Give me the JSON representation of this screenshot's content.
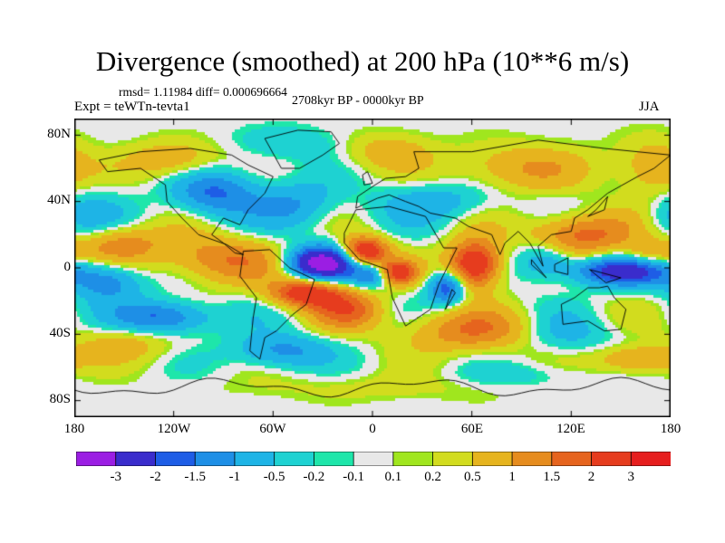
{
  "header": {
    "title": "Divergence (smoothed) at 200 hPa (10**6 m/s)",
    "stats": "rmsd= 1.11984 diff= 0.000696664",
    "expt": "Expt = teWTn-tevta1",
    "period": "2708kyr BP - 0000kyr BP",
    "season": "JJA"
  },
  "axes": {
    "y_labels": [
      "80N",
      "40N",
      "0",
      "40S",
      "80S"
    ],
    "x_labels": [
      "180",
      "120W",
      "60W",
      "0",
      "60E",
      "120E",
      "180"
    ]
  },
  "legend": {
    "labels": [
      "-3",
      "-2",
      "-1.5",
      "-1",
      "-0.5",
      "-0.2",
      "-0.1",
      "0.1",
      "0.2",
      "0.5",
      "1",
      "1.5",
      "2",
      "3"
    ],
    "colors": [
      "#9b1ee3",
      "#3a2ccc",
      "#1e5de6",
      "#1e8fe6",
      "#1eb4e6",
      "#1ed2d2",
      "#1ee6aa",
      "#e8e8e8",
      "#a0e61e",
      "#d2dc1e",
      "#e6b41e",
      "#e68c1e",
      "#e6641e",
      "#e63c1e",
      "#e61e1e"
    ]
  },
  "map_data": {
    "lon_range": [
      -180,
      180
    ],
    "lat_range": [
      -90,
      90
    ],
    "features": [
      {
        "lon": -30,
        "lat": 3,
        "v": -3.5,
        "sx": 14,
        "sy": 7
      },
      {
        "lon": -5,
        "lat": 10,
        "v": 3.0,
        "sx": 10,
        "sy": 6
      },
      {
        "lon": 62,
        "lat": 2,
        "v": 3.2,
        "sx": 11,
        "sy": 10
      },
      {
        "lon": 45,
        "lat": -12,
        "v": -2.0,
        "sx": 8,
        "sy": 7
      },
      {
        "lon": 15,
        "lat": -3,
        "v": 2.3,
        "sx": 8,
        "sy": 5
      },
      {
        "lon": 0,
        "lat": -5,
        "v": -1.5,
        "sx": 8,
        "sy": 5
      },
      {
        "lon": -40,
        "lat": -15,
        "v": 2.6,
        "sx": 15,
        "sy": 6
      },
      {
        "lon": -15,
        "lat": -25,
        "v": 1.6,
        "sx": 15,
        "sy": 8
      },
      {
        "lon": 150,
        "lat": -2,
        "v": -2.3,
        "sx": 22,
        "sy": 6
      },
      {
        "lon": 105,
        "lat": 5,
        "v": -1.2,
        "sx": 12,
        "sy": 8
      },
      {
        "lon": 125,
        "lat": 20,
        "v": 1.8,
        "sx": 22,
        "sy": 9
      },
      {
        "lon": 168,
        "lat": 8,
        "v": 1.0,
        "sx": 12,
        "sy": 6
      },
      {
        "lon": -160,
        "lat": -8,
        "v": -1.5,
        "sx": 15,
        "sy": 8
      },
      {
        "lon": -95,
        "lat": 5,
        "v": 1.5,
        "sx": 25,
        "sy": 10
      },
      {
        "lon": -155,
        "lat": 15,
        "v": 1.3,
        "sx": 20,
        "sy": 8
      },
      {
        "lon": -125,
        "lat": -30,
        "v": -1.8,
        "sx": 20,
        "sy": 7
      },
      {
        "lon": -175,
        "lat": 30,
        "v": -0.8,
        "sx": 15,
        "sy": 12
      },
      {
        "lon": -95,
        "lat": 45,
        "v": -1.6,
        "sx": 18,
        "sy": 10
      },
      {
        "lon": -45,
        "lat": 38,
        "v": -1.0,
        "sx": 18,
        "sy": 10
      },
      {
        "lon": -55,
        "lat": -50,
        "v": -1.2,
        "sx": 20,
        "sy": 7
      },
      {
        "lon": 40,
        "lat": 40,
        "v": -0.8,
        "sx": 25,
        "sy": 8
      },
      {
        "lon": 60,
        "lat": -38,
        "v": 1.4,
        "sx": 30,
        "sy": 9
      },
      {
        "lon": 115,
        "lat": -40,
        "v": -0.7,
        "sx": 22,
        "sy": 8
      },
      {
        "lon": 160,
        "lat": -55,
        "v": 1.2,
        "sx": 18,
        "sy": 6
      },
      {
        "lon": -150,
        "lat": -45,
        "v": 0.8,
        "sx": 20,
        "sy": 8
      },
      {
        "lon": 90,
        "lat": 60,
        "v": 1.0,
        "sx": 30,
        "sy": 10
      },
      {
        "lon": -120,
        "lat": 65,
        "v": 1.0,
        "sx": 20,
        "sy": 8
      },
      {
        "lon": 10,
        "lat": 70,
        "v": 0.8,
        "sx": 18,
        "sy": 8
      },
      {
        "lon": -50,
        "lat": 75,
        "v": -0.5,
        "sx": 22,
        "sy": 7
      },
      {
        "lon": 170,
        "lat": 60,
        "v": 1.0,
        "sx": 15,
        "sy": 12
      },
      {
        "lon": 0,
        "lat": -72,
        "v": 0.3,
        "sx": 60,
        "sy": 6
      },
      {
        "lon": 90,
        "lat": -65,
        "v": -0.4,
        "sx": 25,
        "sy": 5
      }
    ]
  }
}
